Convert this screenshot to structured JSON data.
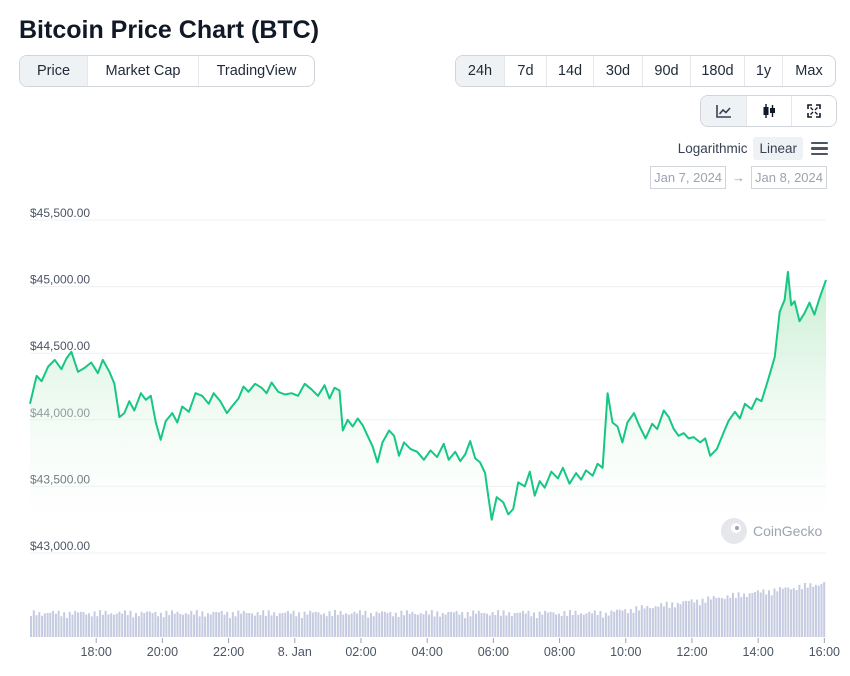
{
  "header": {
    "title": "Bitcoin Price Chart (BTC)"
  },
  "view_tabs": [
    {
      "label": "Price",
      "active": true
    },
    {
      "label": "Market Cap",
      "active": false
    },
    {
      "label": "TradingView",
      "active": false
    }
  ],
  "range_tabs": [
    {
      "label": "24h",
      "active": true
    },
    {
      "label": "7d",
      "active": false
    },
    {
      "label": "14d",
      "active": false
    },
    {
      "label": "30d",
      "active": false
    },
    {
      "label": "90d",
      "active": false
    },
    {
      "label": "180d",
      "active": false
    },
    {
      "label": "1y",
      "active": false
    },
    {
      "label": "Max",
      "active": false
    }
  ],
  "chart_types": [
    {
      "icon": "line-chart-icon",
      "active": true
    },
    {
      "icon": "candlestick-icon",
      "active": false
    },
    {
      "icon": "fullscreen-icon",
      "active": false
    }
  ],
  "scale": {
    "log_label": "Logarithmic",
    "linear_label": "Linear",
    "active": "Linear"
  },
  "date_range": {
    "from": "Jan 7, 2024",
    "arrow": "→",
    "to": "Jan 8, 2024"
  },
  "watermark": "CoinGecko",
  "colors": {
    "line": "#16c784",
    "fill_top": "#c9f0d4",
    "volume": "#c5cbe0",
    "grid": "#eef0f3"
  },
  "chart_data": {
    "type": "area",
    "title": "",
    "ylabel": "",
    "ylim": [
      43000,
      45500
    ],
    "y_ticks": [
      43000,
      43500,
      44000,
      44500,
      45000,
      45500
    ],
    "y_tick_labels": [
      "$43,000.00",
      "$43,500.00",
      "$44,000.00",
      "$44,500.00",
      "$45,000.00",
      "$45,500.00"
    ],
    "x_range": [
      16.0,
      40.05
    ],
    "x_ticks": [
      18,
      20,
      22,
      24,
      26,
      28,
      30,
      32,
      34,
      36,
      38,
      40
    ],
    "x_tick_labels": [
      "18:00",
      "20:00",
      "22:00",
      "8. Jan",
      "02:00",
      "04:00",
      "06:00",
      "08:00",
      "10:00",
      "12:00",
      "14:00",
      "16:00"
    ],
    "grid": true,
    "series": [
      {
        "values": [
          [
            16.0,
            44120
          ],
          [
            16.2,
            44330
          ],
          [
            16.35,
            44290
          ],
          [
            16.55,
            44400
          ],
          [
            16.75,
            44450
          ],
          [
            16.95,
            44380
          ],
          [
            17.1,
            44460
          ],
          [
            17.25,
            44510
          ],
          [
            17.45,
            44360
          ],
          [
            17.65,
            44390
          ],
          [
            17.85,
            44430
          ],
          [
            18.05,
            44350
          ],
          [
            18.2,
            44450
          ],
          [
            18.4,
            44360
          ],
          [
            18.55,
            44270
          ],
          [
            18.7,
            44020
          ],
          [
            18.85,
            44050
          ],
          [
            19.0,
            44140
          ],
          [
            19.15,
            44070
          ],
          [
            19.35,
            44200
          ],
          [
            19.5,
            44150
          ],
          [
            19.65,
            44180
          ],
          [
            19.8,
            43980
          ],
          [
            19.95,
            43850
          ],
          [
            20.1,
            43990
          ],
          [
            20.3,
            44050
          ],
          [
            20.45,
            43980
          ],
          [
            20.6,
            44100
          ],
          [
            20.8,
            44060
          ],
          [
            21.0,
            44200
          ],
          [
            21.2,
            44180
          ],
          [
            21.4,
            44120
          ],
          [
            21.55,
            44200
          ],
          [
            21.75,
            44140
          ],
          [
            21.95,
            44050
          ],
          [
            22.1,
            44100
          ],
          [
            22.3,
            44160
          ],
          [
            22.45,
            44250
          ],
          [
            22.6,
            44210
          ],
          [
            22.8,
            44270
          ],
          [
            23.0,
            44240
          ],
          [
            23.15,
            44200
          ],
          [
            23.3,
            44280
          ],
          [
            23.5,
            44210
          ],
          [
            23.7,
            44190
          ],
          [
            23.9,
            44200
          ],
          [
            24.1,
            44180
          ],
          [
            24.3,
            44270
          ],
          [
            24.5,
            44230
          ],
          [
            24.7,
            44180
          ],
          [
            24.9,
            44260
          ],
          [
            25.05,
            44160
          ],
          [
            25.2,
            44240
          ],
          [
            25.35,
            44220
          ],
          [
            25.45,
            43920
          ],
          [
            25.6,
            44000
          ],
          [
            25.75,
            43950
          ],
          [
            25.9,
            44010
          ],
          [
            26.05,
            43960
          ],
          [
            26.2,
            43880
          ],
          [
            26.35,
            43800
          ],
          [
            26.5,
            43680
          ],
          [
            26.65,
            43830
          ],
          [
            26.85,
            43920
          ],
          [
            27.0,
            43880
          ],
          [
            27.15,
            43730
          ],
          [
            27.3,
            43830
          ],
          [
            27.5,
            43780
          ],
          [
            27.7,
            43760
          ],
          [
            27.9,
            43700
          ],
          [
            28.1,
            43770
          ],
          [
            28.3,
            43720
          ],
          [
            28.5,
            43820
          ],
          [
            28.65,
            43700
          ],
          [
            28.85,
            43760
          ],
          [
            29.0,
            43690
          ],
          [
            29.15,
            43740
          ],
          [
            29.3,
            43840
          ],
          [
            29.45,
            43710
          ],
          [
            29.6,
            43680
          ],
          [
            29.75,
            43600
          ],
          [
            29.85,
            43420
          ],
          [
            29.95,
            43250
          ],
          [
            30.1,
            43420
          ],
          [
            30.3,
            43380
          ],
          [
            30.45,
            43290
          ],
          [
            30.6,
            43330
          ],
          [
            30.75,
            43530
          ],
          [
            30.95,
            43500
          ],
          [
            31.1,
            43610
          ],
          [
            31.25,
            43430
          ],
          [
            31.4,
            43540
          ],
          [
            31.55,
            43490
          ],
          [
            31.75,
            43610
          ],
          [
            31.95,
            43560
          ],
          [
            32.1,
            43640
          ],
          [
            32.3,
            43520
          ],
          [
            32.5,
            43600
          ],
          [
            32.65,
            43550
          ],
          [
            32.8,
            43620
          ],
          [
            33.0,
            43580
          ],
          [
            33.15,
            43670
          ],
          [
            33.3,
            43640
          ],
          [
            33.45,
            44200
          ],
          [
            33.6,
            43980
          ],
          [
            33.75,
            43950
          ],
          [
            33.9,
            43830
          ],
          [
            34.05,
            43980
          ],
          [
            34.25,
            44050
          ],
          [
            34.4,
            43960
          ],
          [
            34.6,
            43860
          ],
          [
            34.8,
            43970
          ],
          [
            34.95,
            43930
          ],
          [
            35.15,
            44070
          ],
          [
            35.3,
            44020
          ],
          [
            35.45,
            43930
          ],
          [
            35.6,
            43880
          ],
          [
            35.75,
            43900
          ],
          [
            35.9,
            43860
          ],
          [
            36.05,
            43870
          ],
          [
            36.25,
            43830
          ],
          [
            36.4,
            43860
          ],
          [
            36.55,
            43730
          ],
          [
            36.75,
            43780
          ],
          [
            36.95,
            43900
          ],
          [
            37.1,
            43990
          ],
          [
            37.3,
            44060
          ],
          [
            37.45,
            44010
          ],
          [
            37.6,
            44120
          ],
          [
            37.8,
            44080
          ],
          [
            37.95,
            44160
          ],
          [
            38.1,
            44140
          ],
          [
            38.3,
            44300
          ],
          [
            38.5,
            44470
          ],
          [
            38.65,
            44810
          ],
          [
            38.8,
            44900
          ],
          [
            38.9,
            45110
          ],
          [
            39.0,
            44860
          ],
          [
            39.1,
            44890
          ],
          [
            39.25,
            44740
          ],
          [
            39.4,
            44800
          ],
          [
            39.55,
            44880
          ],
          [
            39.7,
            44790
          ],
          [
            39.85,
            44910
          ],
          [
            40.05,
            45050
          ]
        ]
      }
    ]
  }
}
